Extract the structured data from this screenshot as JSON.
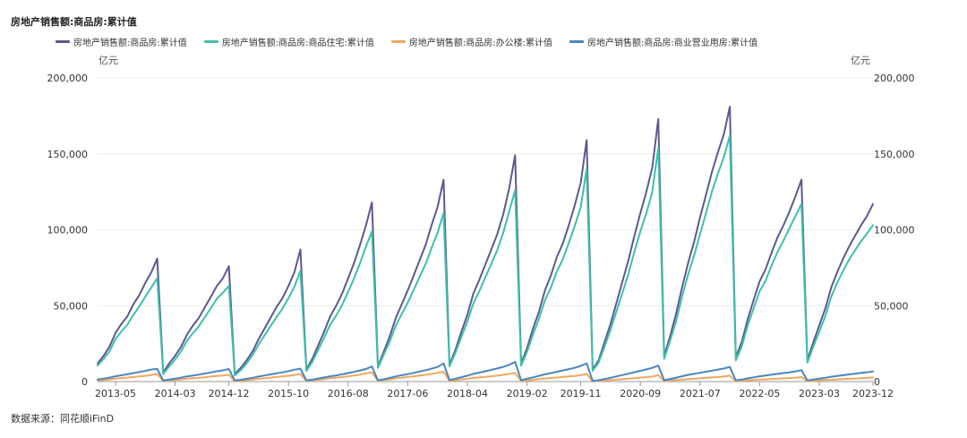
{
  "chart_data": {
    "type": "line",
    "title": "房地产销售额:商品房:累计值",
    "y_unit_left": "亿元",
    "y_unit_right": "亿元",
    "ylim": [
      0,
      200000
    ],
    "y_ticks": [
      0,
      50000,
      100000,
      150000,
      200000
    ],
    "y_tick_labels": [
      "0",
      "50,000",
      "100,000",
      "150,000",
      "200,000"
    ],
    "x_range": [
      "2013-02",
      "2023-12"
    ],
    "x_tick_labels": [
      "2013-05",
      "2014-03",
      "2014-12",
      "2015-10",
      "2016-08",
      "2017-06",
      "2018-04",
      "2019-02",
      "2019-11",
      "2020-09",
      "2021-07",
      "2022-05",
      "2023-03",
      "2023-12"
    ],
    "grid": "horizontal",
    "legend": "top",
    "source": "数据来源：同花顺iFinD",
    "series": [
      {
        "name": "房地产销售额:商品房:累计值",
        "color": "#5b5a8e",
        "years": {
          "2013": [
            8000,
            12000,
            17000,
            23000,
            32000,
            38000,
            43000,
            51000,
            57000,
            65000,
            72000,
            81000
          ],
          "2014": [
            6000,
            12000,
            17000,
            23000,
            31000,
            37000,
            42000,
            49000,
            56000,
            63000,
            68000,
            76000
          ],
          "2015": [
            5000,
            9000,
            14000,
            20000,
            28000,
            35000,
            42000,
            49000,
            55000,
            63000,
            72000,
            87000
          ],
          "2016": [
            8000,
            15000,
            24000,
            33000,
            43000,
            50000,
            58000,
            68000,
            78000,
            90000,
            103000,
            118000
          ],
          "2017": [
            10000,
            20000,
            30000,
            42000,
            51000,
            60000,
            70000,
            80000,
            90000,
            103000,
            115000,
            133000
          ],
          "2018": [
            11000,
            21000,
            33000,
            44000,
            58000,
            67000,
            77000,
            87000,
            97000,
            110000,
            127000,
            149000
          ],
          "2019": [
            12000,
            22000,
            35000,
            46000,
            60000,
            70000,
            82000,
            91000,
            103000,
            116000,
            131000,
            159000
          ],
          "2020": [
            8000,
            14000,
            26000,
            38000,
            52000,
            66000,
            80000,
            96000,
            111000,
            125000,
            141000,
            173000
          ],
          "2021": [
            17000,
            30000,
            45000,
            62000,
            78000,
            92000,
            108000,
            123000,
            138000,
            151000,
            163000,
            181000
          ],
          "2022": [
            16000,
            26000,
            41000,
            54000,
            66000,
            74000,
            85000,
            95000,
            103000,
            112000,
            122000,
            133000
          ],
          "2023": [
            14000,
            26000,
            37000,
            48000,
            62000,
            72000,
            81000,
            89000,
            96000,
            103000,
            109000,
            117000
          ]
        }
      },
      {
        "name": "房地产销售额:商品房:商品住宅:累计值",
        "color": "#3fbfaa",
        "years": {
          "2013": [
            7000,
            10500,
            15000,
            20000,
            28000,
            33000,
            37500,
            44000,
            49500,
            56000,
            62000,
            68000
          ],
          "2014": [
            5000,
            10000,
            14500,
            20000,
            27000,
            32000,
            36500,
            42500,
            48500,
            54500,
            58500,
            63000
          ],
          "2015": [
            4000,
            7500,
            12000,
            17500,
            24500,
            30500,
            36500,
            42500,
            48000,
            55000,
            62500,
            73000
          ],
          "2016": [
            7000,
            13000,
            21000,
            29000,
            37500,
            43500,
            50500,
            59000,
            68000,
            78000,
            89000,
            99000
          ],
          "2017": [
            9000,
            18000,
            26500,
            37000,
            44500,
            52000,
            60500,
            69000,
            77500,
            88000,
            98000,
            111000
          ],
          "2018": [
            10000,
            19000,
            29500,
            39500,
            51500,
            59500,
            68500,
            77500,
            86500,
            98000,
            112000,
            126000
          ],
          "2019": [
            10500,
            19500,
            31000,
            41500,
            53500,
            62000,
            72500,
            80500,
            91500,
            102500,
            115000,
            140000
          ],
          "2020": [
            7000,
            12500,
            23000,
            34000,
            46500,
            58500,
            71000,
            85500,
            99000,
            111000,
            125000,
            154000
          ],
          "2021": [
            15000,
            27000,
            40000,
            56000,
            70500,
            83000,
            97000,
            111000,
            125000,
            137000,
            148000,
            162000
          ],
          "2022": [
            14000,
            23000,
            37000,
            48500,
            59500,
            66500,
            76500,
            85500,
            93000,
            101000,
            109000,
            117000
          ],
          "2023": [
            12500,
            23000,
            33000,
            43000,
            56000,
            65000,
            73000,
            80500,
            86500,
            92500,
            97500,
            103000
          ]
        }
      },
      {
        "name": "房地产销售额:商品房:办公楼:累计值",
        "color": "#f0a860",
        "years": {
          "2013": [
            400,
            700,
            1000,
            1400,
            1900,
            2300,
            2600,
            3000,
            3400,
            3800,
            4300,
            5000
          ],
          "2014": [
            400,
            700,
            1000,
            1400,
            1900,
            2200,
            2500,
            2900,
            3300,
            3700,
            4000,
            4500
          ],
          "2015": [
            300,
            600,
            900,
            1300,
            1800,
            2200,
            2600,
            3000,
            3400,
            3800,
            4300,
            5000
          ],
          "2016": [
            400,
            800,
            1200,
            1700,
            2200,
            2600,
            3000,
            3500,
            4000,
            4600,
            5300,
            6100
          ],
          "2017": [
            500,
            1000,
            1500,
            2100,
            2500,
            3000,
            3500,
            4000,
            4500,
            5100,
            5700,
            6500
          ],
          "2018": [
            500,
            900,
            1400,
            1800,
            2400,
            2700,
            3100,
            3500,
            3900,
            4400,
            5000,
            5700
          ],
          "2019": [
            400,
            800,
            1200,
            1600,
            2000,
            2300,
            2700,
            3000,
            3400,
            3700,
            4200,
            5100
          ],
          "2020": [
            200,
            400,
            700,
            1000,
            1300,
            1600,
            1900,
            2200,
            2600,
            2900,
            3300,
            4200
          ],
          "2021": [
            400,
            700,
            1000,
            1300,
            1600,
            1800,
            2100,
            2400,
            2700,
            3000,
            3300,
            3900
          ],
          "2022": [
            300,
            500,
            800,
            1100,
            1300,
            1500,
            1700,
            1900,
            2100,
            2300,
            2600,
            3000
          ],
          "2023": [
            300,
            500,
            800,
            1000,
            1200,
            1400,
            1600,
            1800,
            2000,
            2200,
            2400,
            2700
          ]
        }
      },
      {
        "name": "房地产销售额:商品房:商业营业用房:累计值",
        "color": "#4a86c0",
        "years": {
          "2013": [
            800,
            1300,
            1900,
            2600,
            3500,
            4200,
            4800,
            5600,
            6300,
            7100,
            7900,
            8400
          ],
          "2014": [
            700,
            1300,
            1900,
            2600,
            3400,
            4000,
            4600,
            5300,
            6000,
            6800,
            7400,
            8300
          ],
          "2015": [
            700,
            1200,
            1800,
            2500,
            3300,
            4000,
            4700,
            5400,
            6100,
            6900,
            7800,
            8500
          ],
          "2016": [
            700,
            1300,
            2000,
            2700,
            3500,
            4100,
            4800,
            5600,
            6400,
            7300,
            8300,
            10000
          ],
          "2017": [
            800,
            1600,
            2400,
            3400,
            4200,
            4900,
            5700,
            6600,
            7500,
            8500,
            9600,
            12000
          ],
          "2018": [
            1000,
            1900,
            2900,
            3900,
            5100,
            5900,
            6800,
            7700,
            8600,
            9700,
            11000,
            13000
          ],
          "2019": [
            900,
            1800,
            2800,
            3800,
            4800,
            5600,
            6500,
            7300,
            8200,
            9100,
            10300,
            12000
          ],
          "2020": [
            500,
            900,
            1700,
            2500,
            3400,
            4300,
            5200,
            6200,
            7100,
            8000,
            9000,
            10500
          ],
          "2021": [
            900,
            1700,
            2600,
            3500,
            4400,
            5100,
            5800,
            6500,
            7200,
            7900,
            8600,
            9600
          ],
          "2022": [
            800,
            1300,
            2100,
            2800,
            3500,
            4000,
            4600,
            5100,
            5600,
            6100,
            6700,
            7500
          ],
          "2023": [
            700,
            1300,
            1900,
            2500,
            3200,
            3700,
            4200,
            4700,
            5200,
            5700,
            6100,
            6700
          ]
        }
      }
    ]
  }
}
